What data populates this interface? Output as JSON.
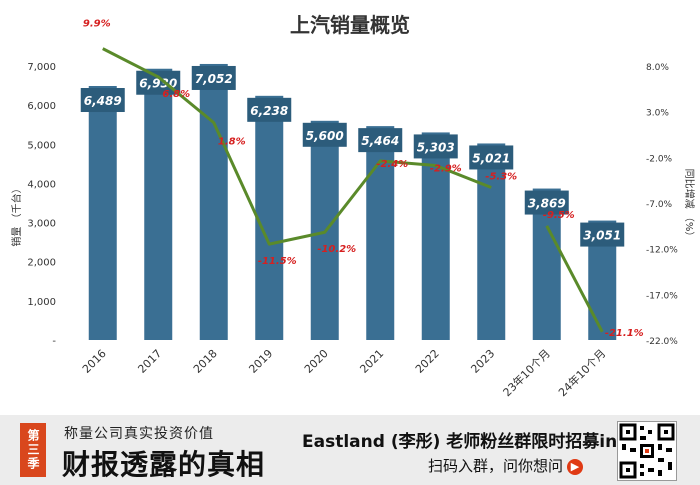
{
  "chart_data": {
    "type": "bar",
    "title": "上汽销量概览",
    "categories": [
      "2016",
      "2017",
      "2018",
      "2019",
      "2020",
      "2021",
      "2022",
      "2023",
      "23年10个月",
      "24年10个月"
    ],
    "series": [
      {
        "name": "销量",
        "values": [
          6489,
          6930,
          7052,
          6238,
          5600,
          5464,
          5303,
          5021,
          3869,
          3051
        ],
        "labels": [
          "6,489",
          "6,930",
          "7,052",
          "6,238",
          "5,600",
          "5,464",
          "5,303",
          "5,021",
          "3,869",
          "3,051"
        ],
        "color": "#3a6f93"
      },
      {
        "name": "同比增减",
        "type": "line",
        "axis": "right",
        "values": [
          9.9,
          6.8,
          1.8,
          -11.5,
          -10.2,
          -2.4,
          -2.9,
          -5.3,
          -9.5,
          -21.1
        ],
        "labels": [
          "9.9%",
          "6.8%",
          "1.8%",
          "-11.5%",
          "-10.2%",
          "-2.4%",
          "-2.9%",
          "-5.3%",
          "-9.5%",
          "-21.1%"
        ],
        "color": "#5a8a2a",
        "label_color": "#d62020",
        "segments": [
          [
            0,
            7
          ],
          [
            8,
            9
          ]
        ]
      }
    ],
    "ylabel": "销量 （千台）",
    "y2label": "同比增减 （%）",
    "ylim": [
      0,
      7000
    ],
    "yticks": [
      0,
      1000,
      2000,
      3000,
      4000,
      5000,
      6000,
      7000
    ],
    "yticklabels": [
      "-",
      "1,000",
      "2,000",
      "3,000",
      "4,000",
      "5,000",
      "6,000",
      "7,000"
    ],
    "y2lim": [
      -22,
      8
    ],
    "y2ticks": [
      8,
      3,
      -2,
      -7,
      -12,
      -17,
      -22
    ],
    "y2ticklabels": [
      "8.0%",
      "3.0%",
      "-2.0%",
      "-7.0%",
      "-12.0%",
      "-17.0%",
      "-22.0%"
    ],
    "grid": false,
    "legend": "none"
  },
  "banner": {
    "season_badge": "第三季",
    "subtitle": "称量公司真实投资价值",
    "big_title": "财报透露的真相",
    "recruit_text": "Eastland (李彤) 老师粉丝群限时招募ing",
    "scan_text": "扫码入群，问你想问",
    "arrow_icon": "play-arrow-icon",
    "qr_icon": "qr-code-icon"
  }
}
